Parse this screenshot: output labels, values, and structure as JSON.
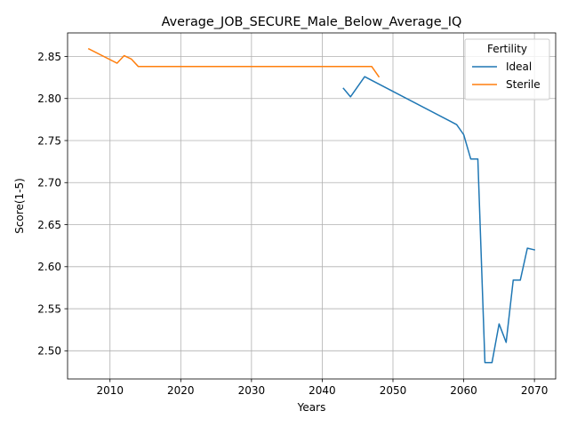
{
  "chart_data": {
    "type": "line",
    "title": "Average_JOB_SECURE_Male_Below_Average_IQ",
    "xlabel": "Years",
    "ylabel": "Score(1-5)",
    "xlim": [
      2004,
      2073
    ],
    "ylim": [
      2.4665,
      2.878
    ],
    "xticks": [
      2010,
      2020,
      2030,
      2040,
      2050,
      2060,
      2070
    ],
    "yticks": [
      2.5,
      2.55,
      2.6,
      2.65,
      2.7,
      2.75,
      2.8,
      2.85
    ],
    "grid": true,
    "legend": {
      "title": "Fertility",
      "position": "top-right"
    },
    "series": [
      {
        "name": "Ideal",
        "color": "#1f77b4",
        "x": [
          2043,
          2044,
          2046,
          2059,
          2060,
          2061,
          2062,
          2063,
          2064,
          2065,
          2066,
          2067,
          2068,
          2069,
          2070
        ],
        "y": [
          2.812,
          2.802,
          2.826,
          2.769,
          2.757,
          2.728,
          2.728,
          2.486,
          2.486,
          2.532,
          2.51,
          2.584,
          2.584,
          2.622,
          2.62
        ]
      },
      {
        "name": "Sterile",
        "color": "#ff7f0e",
        "x": [
          2007,
          2011,
          2012,
          2013,
          2014,
          2047,
          2048
        ],
        "y": [
          2.859,
          2.842,
          2.851,
          2.847,
          2.838,
          2.838,
          2.826
        ]
      }
    ]
  }
}
